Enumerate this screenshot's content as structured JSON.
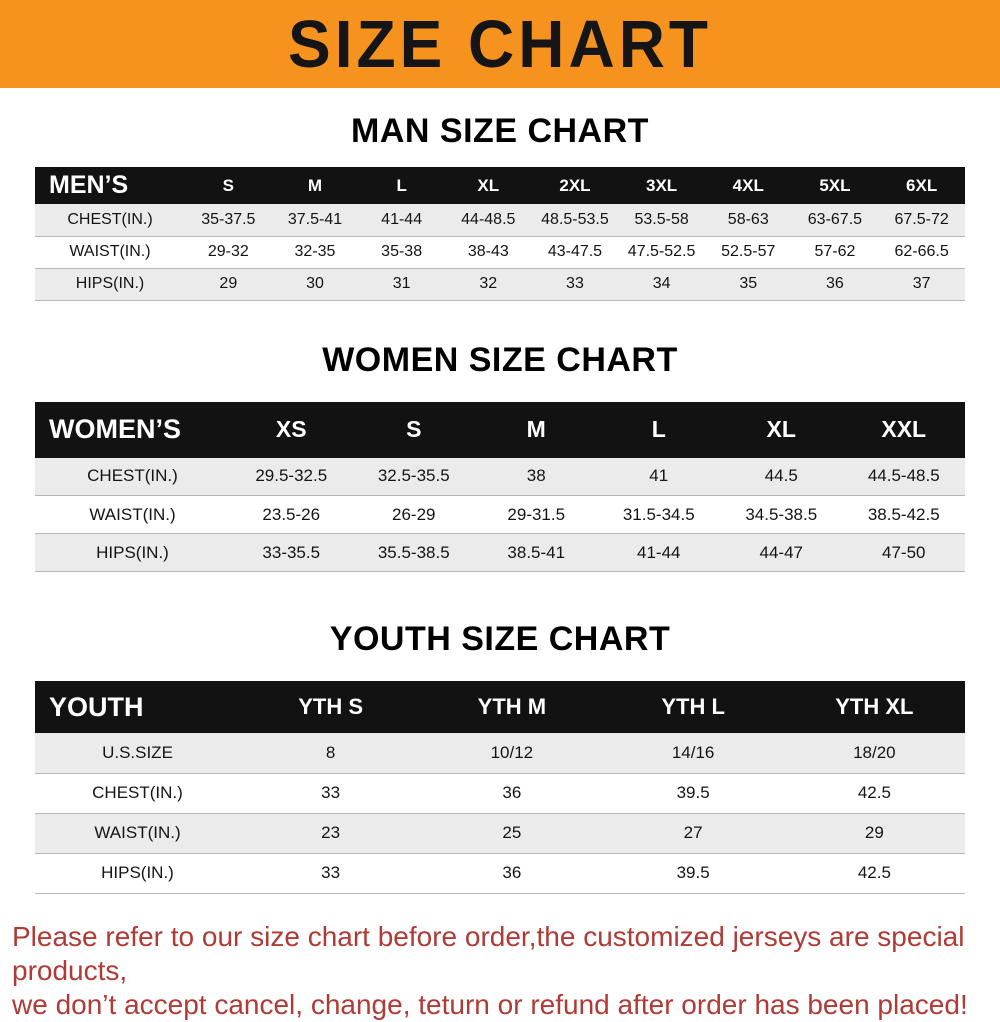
{
  "banner": {
    "title": "SIZE CHART"
  },
  "colors": {
    "banner_bg": "#f6921e",
    "header_bg": "#121212",
    "footer_text": "#b03a36",
    "row_alt": "#ebebeb"
  },
  "sections": [
    {
      "heading": "MAN SIZE CHART",
      "table": {
        "header": [
          "MEN’S",
          "S",
          "M",
          "L",
          "XL",
          "2XL",
          "3XL",
          "4XL",
          "5XL",
          "6XL"
        ],
        "rows": [
          [
            "CHEST(IN.)",
            "35-37.5",
            "37.5-41",
            "41-44",
            "44-48.5",
            "48.5-53.5",
            "53.5-58",
            "58-63",
            "63-67.5",
            "67.5-72"
          ],
          [
            "WAIST(IN.)",
            "29-32",
            "32-35",
            "35-38",
            "38-43",
            "43-47.5",
            "47.5-52.5",
            "52.5-57",
            "57-62",
            "62-66.5"
          ],
          [
            "HIPS(IN.)",
            "29",
            "30",
            "31",
            "32",
            "33",
            "34",
            "35",
            "36",
            "37"
          ]
        ]
      }
    },
    {
      "heading": "WOMEN SIZE CHART",
      "table": {
        "header": [
          "WOMEN’S",
          "XS",
          "S",
          "M",
          "L",
          "XL",
          "XXL"
        ],
        "rows": [
          [
            "CHEST(IN.)",
            "29.5-32.5",
            "32.5-35.5",
            "38",
            "41",
            "44.5",
            "44.5-48.5"
          ],
          [
            "WAIST(IN.)",
            "23.5-26",
            "26-29",
            "29-31.5",
            "31.5-34.5",
            "34.5-38.5",
            "38.5-42.5"
          ],
          [
            "HIPS(IN.)",
            "33-35.5",
            "35.5-38.5",
            "38.5-41",
            "41-44",
            "44-47",
            "47-50"
          ]
        ]
      }
    },
    {
      "heading": "YOUTH SIZE CHART",
      "table": {
        "header": [
          "YOUTH",
          "YTH S",
          "YTH M",
          "YTH L",
          "YTH XL"
        ],
        "rows": [
          [
            "U.S.SIZE",
            "8",
            "10/12",
            "14/16",
            "18/20"
          ],
          [
            "CHEST(IN.)",
            "33",
            "36",
            "39.5",
            "42.5"
          ],
          [
            "WAIST(IN.)",
            "23",
            "25",
            "27",
            "29"
          ],
          [
            "HIPS(IN.)",
            "33",
            "36",
            "39.5",
            "42.5"
          ]
        ]
      }
    }
  ],
  "footer": {
    "line1": "Please refer to our size chart before order,the customized jerseys are special products,",
    "line2": "we don’t accept cancel, change, teturn or refund after order has been placed!"
  }
}
